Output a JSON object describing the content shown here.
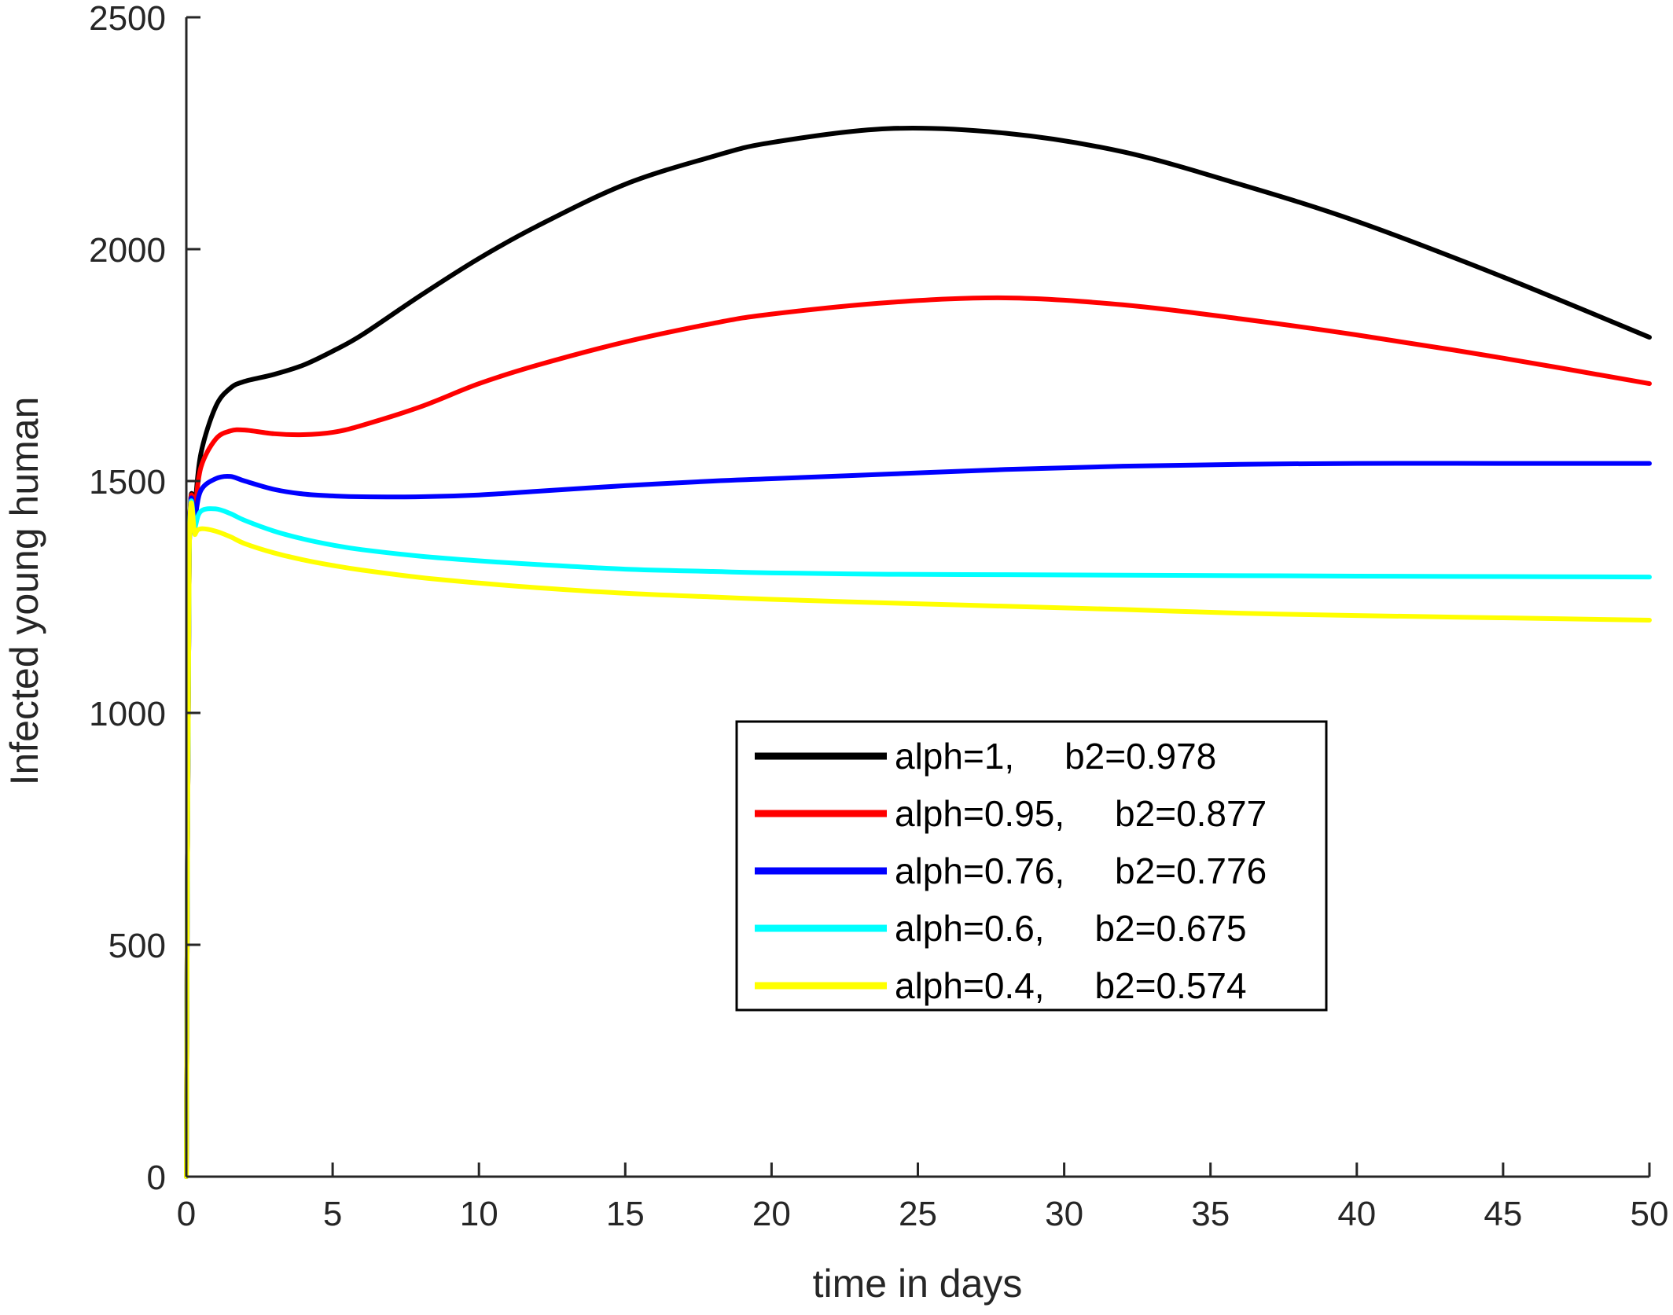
{
  "chart_data": {
    "type": "line",
    "title": "",
    "xlabel": "time in days",
    "ylabel": "Infected young human",
    "xlim": [
      0,
      50
    ],
    "ylim": [
      0,
      2500
    ],
    "xticks": [
      0,
      5,
      10,
      15,
      20,
      25,
      30,
      35,
      40,
      45,
      50
    ],
    "yticks": [
      0,
      500,
      1000,
      1500,
      2000,
      2500
    ],
    "grid": false,
    "legend_position": "lower-center",
    "x": [
      0,
      0.1,
      0.3,
      0.5,
      1,
      1.5,
      2,
      3,
      4,
      5,
      6,
      8,
      10,
      12,
      15,
      18,
      20,
      24,
      28,
      32,
      36,
      40,
      45,
      50
    ],
    "series": [
      {
        "name": "alph=1,     b2=0.978",
        "color": "#000000",
        "values": [
          0,
          1340,
          1450,
          1560,
          1660,
          1700,
          1715,
          1730,
          1750,
          1780,
          1815,
          1900,
          1980,
          2050,
          2140,
          2200,
          2230,
          2260,
          2250,
          2210,
          2140,
          2060,
          1940,
          1810
        ]
      },
      {
        "name": "alph=0.95,     b2=0.877",
        "color": "#ff0000",
        "values": [
          0,
          1340,
          1440,
          1530,
          1590,
          1608,
          1610,
          1602,
          1600,
          1605,
          1620,
          1660,
          1710,
          1750,
          1800,
          1840,
          1860,
          1885,
          1895,
          1880,
          1850,
          1815,
          1765,
          1710
        ]
      },
      {
        "name": "alph=0.76,     b2=0.776",
        "color": "#0000ff",
        "values": [
          0,
          1340,
          1420,
          1480,
          1505,
          1510,
          1500,
          1482,
          1472,
          1468,
          1466,
          1466,
          1470,
          1478,
          1490,
          1500,
          1505,
          1515,
          1525,
          1532,
          1536,
          1538,
          1538,
          1538
        ]
      },
      {
        "name": "alph=0.6,     b2=0.675",
        "color": "#00ffff",
        "values": [
          0,
          1340,
          1400,
          1435,
          1440,
          1430,
          1415,
          1392,
          1375,
          1362,
          1352,
          1338,
          1328,
          1320,
          1310,
          1305,
          1302,
          1299,
          1298,
          1297,
          1296,
          1295,
          1294,
          1293
        ]
      },
      {
        "name": "alph=0.4,     b2=0.574",
        "color": "#ffff00",
        "values": [
          0,
          1340,
          1385,
          1397,
          1392,
          1380,
          1365,
          1345,
          1330,
          1318,
          1308,
          1292,
          1280,
          1270,
          1258,
          1250,
          1245,
          1237,
          1230,
          1223,
          1215,
          1210,
          1205,
          1200
        ]
      }
    ]
  }
}
